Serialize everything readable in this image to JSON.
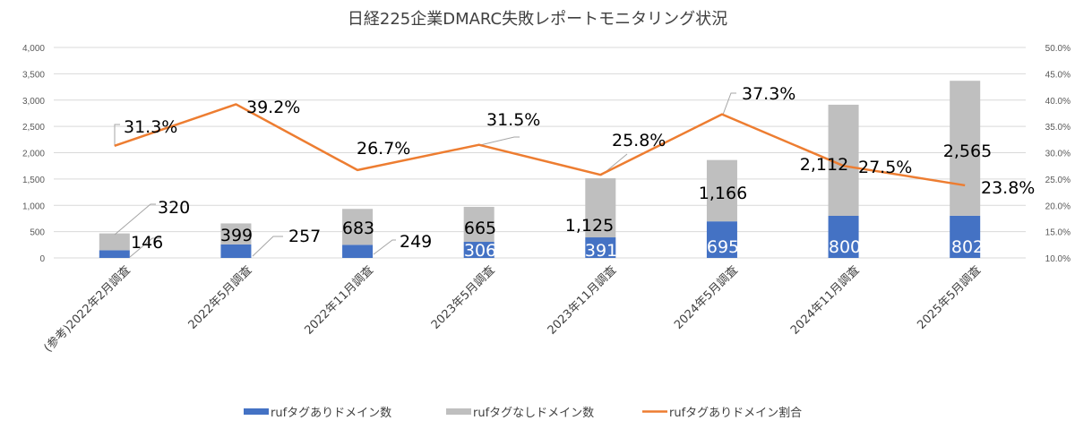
{
  "chart_data": {
    "type": "bar",
    "title": "日経225企業DMARC失敗レポートモニタリング状況",
    "categories": [
      "(参考)2022年2月調査",
      "2022年5月調査",
      "2022年11月調査",
      "2023年5月調査",
      "2023年11月調査",
      "2024年5月調査",
      "2024年11月調査",
      "2025年5月調査"
    ],
    "series": [
      {
        "name": "rufタグありドメイン数",
        "kind": "bar-stacked",
        "axis": "left",
        "color": "#4472C4",
        "values": [
          146,
          257,
          249,
          306,
          391,
          695,
          800,
          802
        ],
        "labels": [
          "146",
          "257",
          "249",
          "306",
          "391",
          "695",
          "800",
          "802"
        ]
      },
      {
        "name": "rufタグなしドメイン数",
        "kind": "bar-stacked",
        "axis": "left",
        "color": "#BFBFBF",
        "values": [
          320,
          399,
          683,
          665,
          1125,
          1166,
          2112,
          2565
        ],
        "labels": [
          "320",
          "399",
          "683",
          "665",
          "1,125",
          "1,166",
          "2,112",
          "2,565"
        ]
      },
      {
        "name": "rufタグありドメイン割合",
        "kind": "line",
        "axis": "right",
        "color": "#ED7D31",
        "values": [
          31.3,
          39.2,
          26.7,
          31.5,
          25.8,
          37.3,
          27.5,
          23.8
        ],
        "labels": [
          "31.3%",
          "39.2%",
          "26.7%",
          "31.5%",
          "25.8%",
          "37.3%",
          "27.5%",
          "23.8%"
        ]
      }
    ],
    "ylim_left": [
      0,
      4000
    ],
    "ylim_right": [
      10,
      50
    ],
    "yticks_left": [
      "0",
      "500",
      "1,000",
      "1,500",
      "2,000",
      "2,500",
      "3,000",
      "3,500",
      "4,000"
    ],
    "yticks_right": [
      "10.0%",
      "15.0%",
      "20.0%",
      "25.0%",
      "30.0%",
      "35.0%",
      "40.0%",
      "45.0%",
      "50.0%"
    ],
    "grid": true,
    "legend": "bottom"
  }
}
